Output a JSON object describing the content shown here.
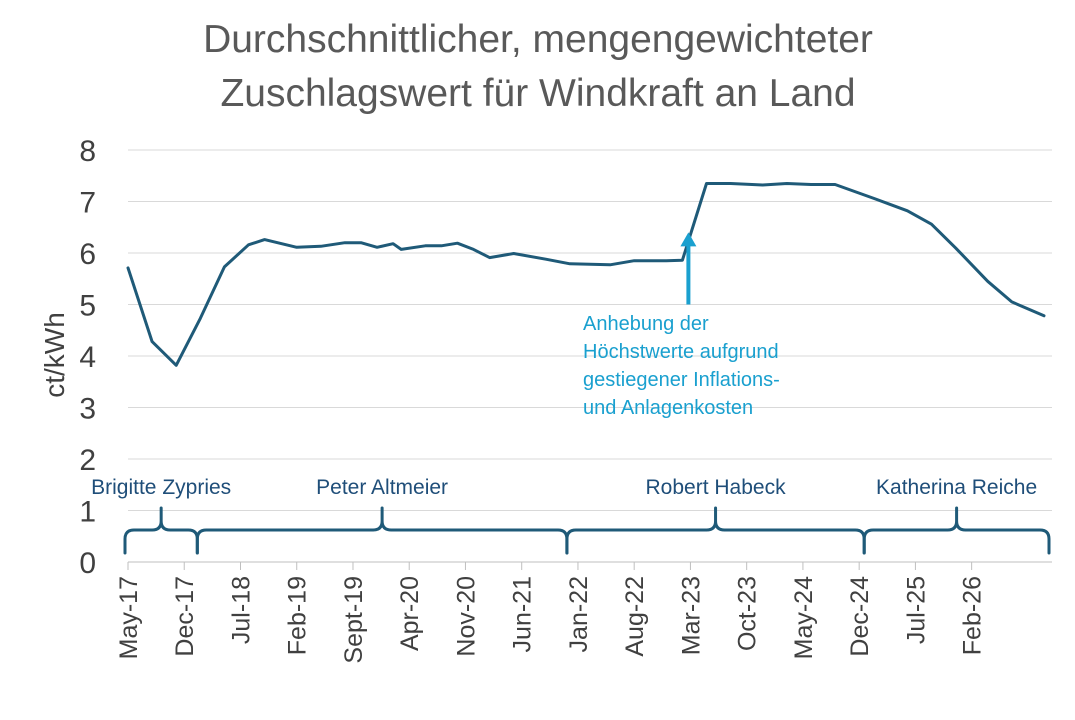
{
  "chart_data": {
    "type": "line",
    "title_lines": [
      "Durchschnittlicher, mengengewichteter",
      "Zuschlagswert für Windkraft an Land"
    ],
    "xlabel": "",
    "ylabel": "ct/kWh",
    "ylim": [
      0,
      8
    ],
    "yticks": [
      "0",
      "1",
      "2",
      "3",
      "4",
      "5",
      "6",
      "7",
      "8"
    ],
    "x_range": [
      "2017-05",
      "2026-12"
    ],
    "xticks": [
      {
        "label": "May-17",
        "date": "2017-05"
      },
      {
        "label": "Dec-17",
        "date": "2017-12"
      },
      {
        "label": "Jul-18",
        "date": "2018-07"
      },
      {
        "label": "Feb-19",
        "date": "2019-02"
      },
      {
        "label": "Sept-19",
        "date": "2019-09"
      },
      {
        "label": "Apr-20",
        "date": "2020-04"
      },
      {
        "label": "Nov-20",
        "date": "2020-11"
      },
      {
        "label": "Jun-21",
        "date": "2021-06"
      },
      {
        "label": "Jan-22",
        "date": "2022-01"
      },
      {
        "label": "Aug-22",
        "date": "2022-08"
      },
      {
        "label": "Mar-23",
        "date": "2023-03"
      },
      {
        "label": "Oct-23",
        "date": "2023-10"
      },
      {
        "label": "May-24",
        "date": "2024-05"
      },
      {
        "label": "Dec-24",
        "date": "2024-12"
      },
      {
        "label": "Jul-25",
        "date": "2025-07"
      },
      {
        "label": "Feb-26",
        "date": "2026-02"
      }
    ],
    "grid": true,
    "color": "#1f5a78",
    "series": [
      {
        "points": [
          {
            "x": "2017-05",
            "y": 5.71
          },
          {
            "x": "2017-08",
            "y": 4.28
          },
          {
            "x": "2017-11",
            "y": 3.82
          },
          {
            "x": "2018-02",
            "y": 4.73
          },
          {
            "x": "2018-05",
            "y": 5.73
          },
          {
            "x": "2018-08",
            "y": 6.16
          },
          {
            "x": "2018-10",
            "y": 6.26
          },
          {
            "x": "2019-02",
            "y": 6.11
          },
          {
            "x": "2019-05",
            "y": 6.13
          },
          {
            "x": "2019-08",
            "y": 6.2
          },
          {
            "x": "2019-10",
            "y": 6.2
          },
          {
            "x": "2019-12",
            "y": 6.11
          },
          {
            "x": "2020-02",
            "y": 6.18
          },
          {
            "x": "2020-03",
            "y": 6.07
          },
          {
            "x": "2020-06",
            "y": 6.14
          },
          {
            "x": "2020-08",
            "y": 6.14
          },
          {
            "x": "2020-10",
            "y": 6.19
          },
          {
            "x": "2020-12",
            "y": 6.07
          },
          {
            "x": "2021-02",
            "y": 5.91
          },
          {
            "x": "2021-05",
            "y": 5.99
          },
          {
            "x": "2021-09",
            "y": 5.88
          },
          {
            "x": "2021-12",
            "y": 5.79
          },
          {
            "x": "2022-05",
            "y": 5.77
          },
          {
            "x": "2022-08",
            "y": 5.85
          },
          {
            "x": "2022-12",
            "y": 5.85
          },
          {
            "x": "2023-02",
            "y": 5.86
          },
          {
            "x": "2023-05",
            "y": 7.35
          },
          {
            "x": "2023-08",
            "y": 7.35
          },
          {
            "x": "2023-12",
            "y": 7.32
          },
          {
            "x": "2024-03",
            "y": 7.35
          },
          {
            "x": "2024-06",
            "y": 7.33
          },
          {
            "x": "2024-09",
            "y": 7.33
          },
          {
            "x": "2025-02",
            "y": 7.05
          },
          {
            "x": "2025-06",
            "y": 6.82
          },
          {
            "x": "2025-09",
            "y": 6.56
          },
          {
            "x": "2025-12",
            "y": 6.1
          },
          {
            "x": "2026-04",
            "y": 5.45
          },
          {
            "x": "2026-07",
            "y": 5.05
          },
          {
            "x": "2026-11",
            "y": 4.78
          }
        ]
      }
    ],
    "annotations": [
      {
        "text_lines": [
          "Anhebung der",
          "Höchstwerte aufgrund",
          "gestiegener Inflations-",
          "und Anlagenkosten"
        ],
        "arrow": {
          "x": "2023-02",
          "y_from": 5.0,
          "y_to": 6.4
        },
        "color": "#1aa0cf"
      }
    ],
    "periods": [
      {
        "label": "Brigitte Zypries",
        "start": "2017-05",
        "end": "2018-02"
      },
      {
        "label": "Peter Altmeier",
        "start": "2018-02",
        "end": "2021-12"
      },
      {
        "label": "Robert Habeck",
        "start": "2021-12",
        "end": "2025-01"
      },
      {
        "label": "Katherina Reiche",
        "start": "2025-01",
        "end": "2026-12"
      }
    ]
  }
}
